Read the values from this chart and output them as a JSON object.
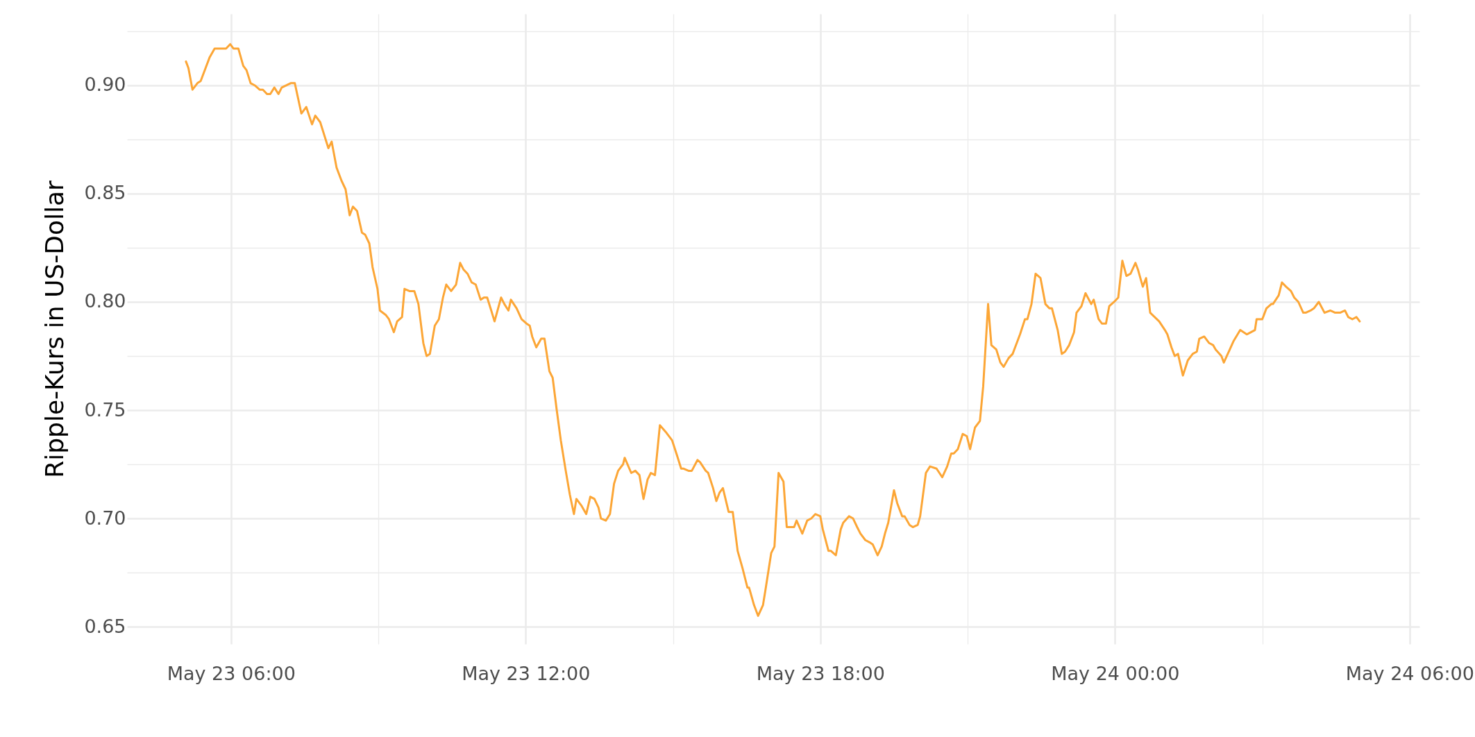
{
  "chart_data": {
    "type": "line",
    "ylabel": "Ripple-Kurs in US-Dollar",
    "x": [
      "--05-23T05:05",
      "--05-23T05:08",
      "--05-23T05:13",
      "--05-23T05:19",
      "--05-23T05:23",
      "--05-23T05:34",
      "--05-23T05:40",
      "--05-23T05:46",
      "--05-23T05:54",
      "--05-23T05:59",
      "--05-23T06:03",
      "--05-23T06:09",
      "--05-23T06:15",
      "--05-23T06:19",
      "--05-23T06:24",
      "--05-23T06:29",
      "--05-23T06:35",
      "--05-23T06:39",
      "--05-23T06:44",
      "--05-23T06:48",
      "--05-23T06:53",
      "--05-23T06:58",
      "--05-23T07:02",
      "--05-23T07:13",
      "--05-23T07:18",
      "--05-23T07:26",
      "--05-23T07:32",
      "--05-23T07:39",
      "--05-23T07:43",
      "--05-23T07:49",
      "--05-23T07:59",
      "--05-23T08:03",
      "--05-23T08:09",
      "--05-23T08:15",
      "--05-23T08:20",
      "--05-23T08:25",
      "--05-23T08:29",
      "--05-23T08:34",
      "--05-23T08:40",
      "--05-23T08:44",
      "--05-23T08:49",
      "--05-23T08:53",
      "--05-23T08:59",
      "--05-23T09:02",
      "--05-23T09:09",
      "--05-23T09:13",
      "--05-23T09:19",
      "--05-23T09:23",
      "--05-23T09:29",
      "--05-23T09:32",
      "--05-23T09:38",
      "--05-23T09:44",
      "--05-23T09:49",
      "--05-23T09:55",
      "--05-23T09:59",
      "--05-23T10:03",
      "--05-23T10:09",
      "--05-23T10:14",
      "--05-23T10:19",
      "--05-23T10:23",
      "--05-23T10:29",
      "--05-23T10:35",
      "--05-23T10:40",
      "--05-23T10:44",
      "--05-23T10:49",
      "--05-23T10:54",
      "--05-23T10:59",
      "--05-23T11:05",
      "--05-23T11:09",
      "--05-23T11:13",
      "--05-23T11:18",
      "--05-23T11:22",
      "--05-23T11:30",
      "--05-23T11:34",
      "--05-23T11:39",
      "--05-23T11:42",
      "--05-23T11:49",
      "--05-23T11:55",
      "--05-23T12:01",
      "--05-23T12:05",
      "--05-23T12:08",
      "--05-23T12:13",
      "--05-23T12:19",
      "--05-23T12:23",
      "--05-23T12:29",
      "--05-23T12:33",
      "--05-23T12:38",
      "--05-23T12:43",
      "--05-23T12:49",
      "--05-23T12:54",
      "--05-23T12:59",
      "--05-23T13:02",
      "--05-23T13:08",
      "--05-23T13:14",
      "--05-23T13:19",
      "--05-23T13:24",
      "--05-23T13:29",
      "--05-23T13:32",
      "--05-23T13:38",
      "--05-23T13:43",
      "--05-23T13:48",
      "--05-23T13:53",
      "--05-23T13:59",
      "--05-23T14:01",
      "--05-23T14:09",
      "--05-23T14:14",
      "--05-23T14:19",
      "--05-23T14:24",
      "--05-23T14:29",
      "--05-23T14:33",
      "--05-23T14:38",
      "--05-23T14:44",
      "--05-23T14:51",
      "--05-23T14:55",
      "--05-23T14:59",
      "--05-23T15:05",
      "--05-23T15:10",
      "--05-23T15:13",
      "--05-23T15:19",
      "--05-23T15:23",
      "--05-23T15:30",
      "--05-23T15:33",
      "--05-23T15:40",
      "--05-23T15:43",
      "--05-23T15:49",
      "--05-23T15:53",
      "--05-23T15:57",
      "--05-23T16:01",
      "--05-23T16:08",
      "--05-23T16:13",
      "--05-23T16:19",
      "--05-23T16:25",
      "--05-23T16:31",
      "--05-23T16:33",
      "--05-23T16:39",
      "--05-23T16:44",
      "--05-23T16:50",
      "--05-23T16:53",
      "--05-23T17:00",
      "--05-23T17:04",
      "--05-23T17:09",
      "--05-23T17:15",
      "--05-23T17:19",
      "--05-23T17:28",
      "--05-23T17:31",
      "--05-23T17:38",
      "--05-23T17:44",
      "--05-23T17:49",
      "--05-23T17:54",
      "--05-23T18:00",
      "--05-23T18:03",
      "--05-23T18:10",
      "--05-23T18:13",
      "--05-23T18:19",
      "--05-23T18:25",
      "--05-23T18:28",
      "--05-23T18:35",
      "--05-23T18:40",
      "--05-23T18:45",
      "--05-23T18:49",
      "--05-23T18:55",
      "--05-23T19:00",
      "--05-23T19:04",
      "--05-23T19:10",
      "--05-23T19:15",
      "--05-23T19:19",
      "--05-23T19:23",
      "--05-23T19:30",
      "--05-23T19:34",
      "--05-23T19:40",
      "--05-23T19:43",
      "--05-23T19:49",
      "--05-23T19:53",
      "--05-23T19:59",
      "--05-23T20:02",
      "--05-23T20:09",
      "--05-23T20:14",
      "--05-23T20:22",
      "--05-23T20:29",
      "--05-23T20:35",
      "--05-23T20:40",
      "--05-23T20:43",
      "--05-23T20:48",
      "--05-23T20:54",
      "--05-23T20:59",
      "--05-23T21:03",
      "--05-23T21:09",
      "--05-23T21:15",
      "--05-23T21:19",
      "--05-23T21:25",
      "--05-23T21:29",
      "--05-23T21:35",
      "--05-23T21:40",
      "--05-23T21:44",
      "--05-23T21:50",
      "--05-23T21:55",
      "--05-23T22:00",
      "--05-23T22:04",
      "--05-23T22:10",
      "--05-23T22:13",
      "--05-23T22:18",
      "--05-23T22:23",
      "--05-23T22:29",
      "--05-23T22:35",
      "--05-23T22:40",
      "--05-23T22:43",
      "--05-23T22:50",
      "--05-23T22:55",
      "--05-23T22:59",
      "--05-23T23:04",
      "--05-23T23:10",
      "--05-23T23:13",
      "--05-23T23:19",
      "--05-23T23:24",
      "--05-23T23:31",
      "--05-23T23:34",
      "--05-23T23:40",
      "--05-23T23:44",
      "--05-23T23:49",
      "--05-23T23:53",
      "--05-23T23:59",
      "--05-24T00:04",
      "--05-24T00:09",
      "--05-24T00:14",
      "--05-24T00:19",
      "--05-24T00:25",
      "--05-24T00:28",
      "--05-24T00:34",
      "--05-24T00:38",
      "--05-24T00:43",
      "--05-24T00:54",
      "--05-24T01:01",
      "--05-24T01:04",
      "--05-24T01:09",
      "--05-24T01:13",
      "--05-24T01:17",
      "--05-24T01:23",
      "--05-24T01:29",
      "--05-24T01:35",
      "--05-24T01:40",
      "--05-24T01:43",
      "--05-24T01:49",
      "--05-24T01:55",
      "--05-24T02:00",
      "--05-24T02:03",
      "--05-24T02:10",
      "--05-24T02:13",
      "--05-24T02:19",
      "--05-24T02:25",
      "--05-24T02:33",
      "--05-24T02:41",
      "--05-24T02:51",
      "--05-24T02:53",
      "--05-24T03:00",
      "--05-24T03:05",
      "--05-24T03:11",
      "--05-24T03:13",
      "--05-24T03:20",
      "--05-24T03:24",
      "--05-24T03:29",
      "--05-24T03:35",
      "--05-24T03:39",
      "--05-24T03:44",
      "--05-24T03:50",
      "--05-24T03:53",
      "--05-24T03:59",
      "--05-24T04:03",
      "--05-24T04:09",
      "--05-24T04:16",
      "--05-24T04:23",
      "--05-24T04:29",
      "--05-24T04:35",
      "--05-24T04:41",
      "--05-24T04:45",
      "--05-24T04:50",
      "--05-24T04:55",
      "--05-24T04:59"
    ],
    "series": [
      {
        "color": "#fca636",
        "values": [
          0.911,
          0.908,
          0.898,
          0.901,
          0.902,
          0.913,
          0.917,
          0.917,
          0.917,
          0.919,
          0.917,
          0.917,
          0.909,
          0.907,
          0.901,
          0.9,
          0.898,
          0.898,
          0.896,
          0.896,
          0.899,
          0.896,
          0.899,
          0.901,
          0.901,
          0.887,
          0.89,
          0.882,
          0.886,
          0.883,
          0.871,
          0.874,
          0.862,
          0.856,
          0.852,
          0.84,
          0.844,
          0.842,
          0.832,
          0.831,
          0.827,
          0.816,
          0.806,
          0.796,
          0.794,
          0.792,
          0.786,
          0.791,
          0.793,
          0.806,
          0.805,
          0.805,
          0.799,
          0.781,
          0.775,
          0.776,
          0.789,
          0.792,
          0.802,
          0.808,
          0.805,
          0.808,
          0.818,
          0.815,
          0.813,
          0.809,
          0.808,
          0.801,
          0.802,
          0.802,
          0.796,
          0.791,
          0.802,
          0.799,
          0.796,
          0.801,
          0.797,
          0.792,
          0.79,
          0.789,
          0.784,
          0.779,
          0.783,
          0.783,
          0.768,
          0.765,
          0.75,
          0.736,
          0.722,
          0.711,
          0.702,
          0.709,
          0.706,
          0.702,
          0.71,
          0.709,
          0.705,
          0.7,
          0.699,
          0.702,
          0.716,
          0.722,
          0.725,
          0.728,
          0.721,
          0.722,
          0.72,
          0.709,
          0.718,
          0.721,
          0.72,
          0.743,
          0.74,
          0.738,
          0.736,
          0.729,
          0.723,
          0.723,
          0.722,
          0.722,
          0.727,
          0.726,
          0.722,
          0.721,
          0.714,
          0.708,
          0.712,
          0.714,
          0.703,
          0.703,
          0.685,
          0.677,
          0.668,
          0.668,
          0.66,
          0.655,
          0.66,
          0.667,
          0.684,
          0.687,
          0.721,
          0.717,
          0.696,
          0.696,
          0.699,
          0.693,
          0.699,
          0.7,
          0.702,
          0.701,
          0.695,
          0.685,
          0.685,
          0.683,
          0.695,
          0.698,
          0.701,
          0.7,
          0.696,
          0.693,
          0.69,
          0.689,
          0.688,
          0.683,
          0.687,
          0.693,
          0.698,
          0.713,
          0.707,
          0.701,
          0.701,
          0.697,
          0.696,
          0.697,
          0.701,
          0.721,
          0.724,
          0.723,
          0.719,
          0.724,
          0.73,
          0.73,
          0.732,
          0.739,
          0.738,
          0.732,
          0.742,
          0.745,
          0.761,
          0.799,
          0.78,
          0.778,
          0.772,
          0.77,
          0.774,
          0.776,
          0.781,
          0.785,
          0.792,
          0.792,
          0.799,
          0.813,
          0.811,
          0.799,
          0.797,
          0.797,
          0.787,
          0.776,
          0.777,
          0.78,
          0.786,
          0.795,
          0.798,
          0.804,
          0.799,
          0.801,
          0.792,
          0.79,
          0.79,
          0.798,
          0.8,
          0.802,
          0.819,
          0.812,
          0.813,
          0.818,
          0.815,
          0.807,
          0.811,
          0.795,
          0.791,
          0.787,
          0.785,
          0.779,
          0.775,
          0.776,
          0.766,
          0.773,
          0.776,
          0.777,
          0.783,
          0.784,
          0.781,
          0.78,
          0.778,
          0.775,
          0.772,
          0.777,
          0.782,
          0.787,
          0.785,
          0.787,
          0.792,
          0.792,
          0.797,
          0.799,
          0.799,
          0.803,
          0.809,
          0.807,
          0.805,
          0.802,
          0.8,
          0.795,
          0.795,
          0.796,
          0.797,
          0.8,
          0.795,
          0.796,
          0.795,
          0.795,
          0.796,
          0.793,
          0.792,
          0.793,
          0.791
        ]
      }
    ],
    "xlim": [
      "--05-23T03:53",
      "--05-24T06:12"
    ],
    "xticks": [
      {
        "value": "--05-23T06:00",
        "label": "May 23 06:00"
      },
      {
        "value": "--05-23T09:00",
        "label": null
      },
      {
        "value": "--05-23T12:00",
        "label": "May 23 12:00"
      },
      {
        "value": "--05-23T15:00",
        "label": null
      },
      {
        "value": "--05-23T18:00",
        "label": "May 23 18:00"
      },
      {
        "value": "--05-23T21:00",
        "label": null
      },
      {
        "value": "--05-24T00:00",
        "label": "May 24 00:00"
      },
      {
        "value": "--05-24T03:00",
        "label": null
      },
      {
        "value": "--05-24T06:00",
        "label": "May 24 06:00"
      }
    ],
    "ylim": [
      0.642,
      0.933
    ],
    "yticks": [
      {
        "value": 0.65,
        "label": "0.65"
      },
      {
        "value": 0.675,
        "label": null
      },
      {
        "value": 0.7,
        "label": "0.70"
      },
      {
        "value": 0.725,
        "label": null
      },
      {
        "value": 0.75,
        "label": "0.75"
      },
      {
        "value": 0.775,
        "label": null
      },
      {
        "value": 0.8,
        "label": "0.80"
      },
      {
        "value": 0.825,
        "label": null
      },
      {
        "value": 0.85,
        "label": "0.85"
      },
      {
        "value": 0.875,
        "label": null
      },
      {
        "value": 0.9,
        "label": "0.90"
      },
      {
        "value": 0.925,
        "label": null
      }
    ],
    "grid": true
  }
}
